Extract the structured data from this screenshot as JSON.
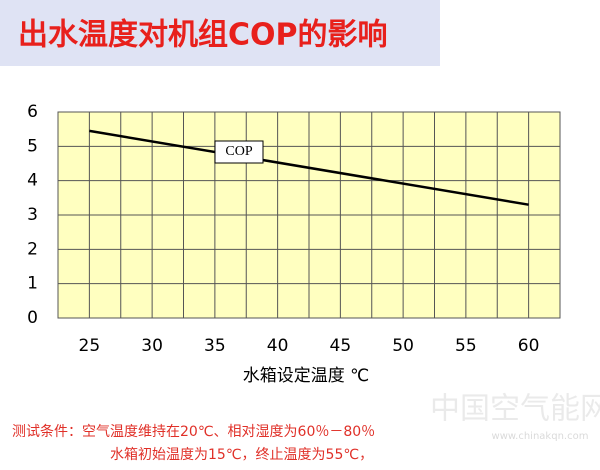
{
  "chart_data": {
    "type": "line",
    "title": "出水温度对机组COP的影响",
    "x": [
      25,
      60
    ],
    "series": [
      {
        "name": "COP",
        "color": "#000000",
        "values": [
          5.45,
          3.3
        ]
      }
    ],
    "xlim": [
      22.5,
      62.5
    ],
    "xticks": [
      25,
      30,
      35,
      40,
      45,
      50,
      55,
      60
    ],
    "x_minor_grid": [
      22.5,
      27.5,
      32.5,
      37.5,
      42.5,
      47.5,
      52.5,
      57.5,
      62.5
    ],
    "ylim": [
      0,
      6
    ],
    "yticks": [
      0,
      1,
      2,
      3,
      4,
      5,
      6
    ],
    "grid": true,
    "plot_background": "#ffffc0",
    "xlabel": "水箱设定温度 ℃",
    "notes": [
      "测试条件：空气温度维持在20℃、相对湿度为60％－80％",
      "水箱初始温度为15℃，终止温度为55℃，"
    ],
    "watermark": [
      "中国空气能网",
      "www.chinakqn.com"
    ]
  }
}
